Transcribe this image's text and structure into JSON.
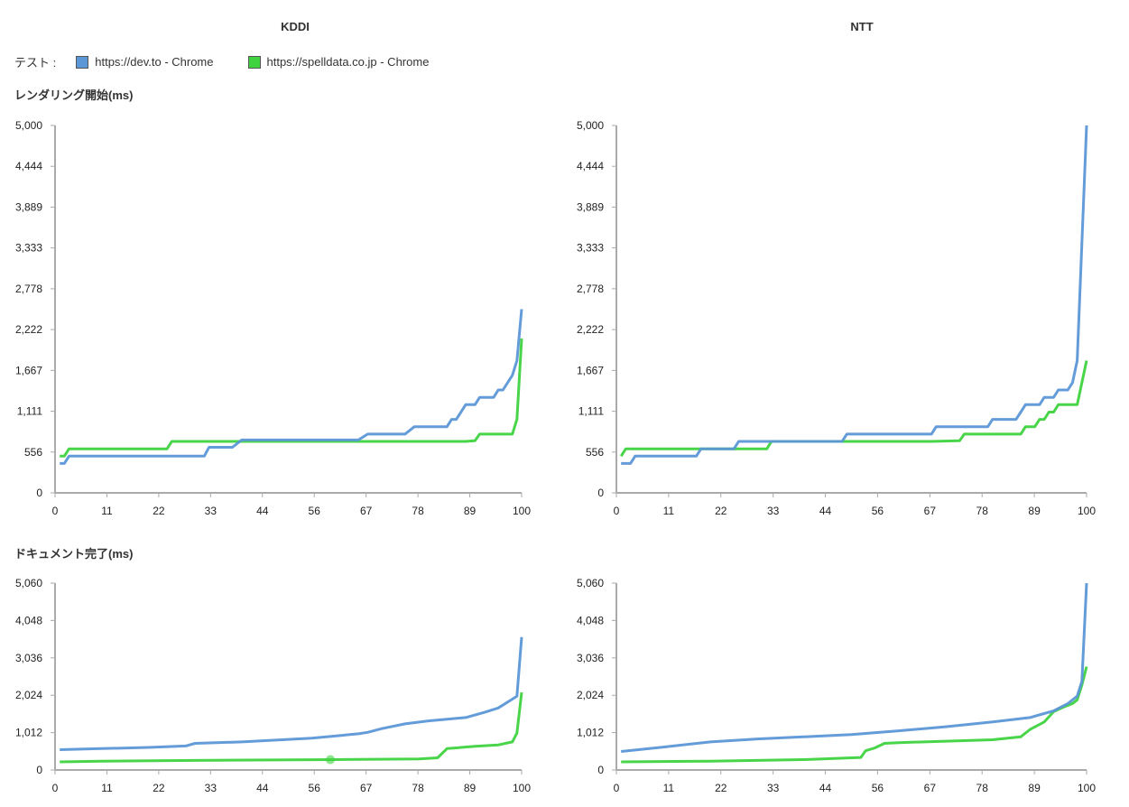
{
  "columns": [
    "KDDI",
    "NTT"
  ],
  "legend": {
    "label": "テスト :",
    "items": [
      {
        "name": "https://dev.to - Chrome",
        "color": "#5b97d6"
      },
      {
        "name": "https://spelldata.co.jp - Chrome",
        "color": "#3fd33f"
      }
    ]
  },
  "sections": [
    "レンダリング開始(ms)",
    "ドキュメント完了(ms)"
  ],
  "chart_data": [
    {
      "type": "line",
      "title": "KDDI - レンダリング開始(ms)",
      "xlim": [
        0,
        100
      ],
      "ylim": [
        0,
        5000
      ],
      "xticks": [
        "0",
        "11",
        "22",
        "33",
        "44",
        "56",
        "67",
        "78",
        "89",
        "100"
      ],
      "yticks": [
        "0",
        "556",
        "1,111",
        "1,667",
        "2,222",
        "2,778",
        "3,333",
        "3,889",
        "4,444",
        "5,000"
      ],
      "series": [
        {
          "name": "https://dev.to - Chrome",
          "points": [
            [
              1,
              400
            ],
            [
              2,
              400
            ],
            [
              3,
              500
            ],
            [
              32,
              500
            ],
            [
              33,
              620
            ],
            [
              38,
              620
            ],
            [
              40,
              720
            ],
            [
              65,
              720
            ],
            [
              67,
              800
            ],
            [
              75,
              800
            ],
            [
              77,
              900
            ],
            [
              84,
              900
            ],
            [
              85,
              1000
            ],
            [
              86,
              1000
            ],
            [
              88,
              1200
            ],
            [
              90,
              1200
            ],
            [
              91,
              1300
            ],
            [
              94,
              1300
            ],
            [
              95,
              1400
            ],
            [
              96,
              1400
            ],
            [
              98,
              1600
            ],
            [
              99,
              1800
            ],
            [
              100,
              2500
            ]
          ]
        },
        {
          "name": "https://spelldata.co.jp - Chrome",
          "points": [
            [
              1,
              500
            ],
            [
              2,
              500
            ],
            [
              3,
              600
            ],
            [
              24,
              600
            ],
            [
              25,
              700
            ],
            [
              88,
              700
            ],
            [
              90,
              710
            ],
            [
              91,
              800
            ],
            [
              98,
              800
            ],
            [
              99,
              1000
            ],
            [
              100,
              2100
            ]
          ]
        }
      ]
    },
    {
      "type": "line",
      "title": "NTT - レンダリング開始(ms)",
      "xlim": [
        0,
        100
      ],
      "ylim": [
        0,
        5000
      ],
      "xticks": [
        "0",
        "11",
        "22",
        "33",
        "44",
        "56",
        "67",
        "78",
        "89",
        "100"
      ],
      "yticks": [
        "0",
        "556",
        "1,111",
        "1,667",
        "2,222",
        "2,778",
        "3,333",
        "3,889",
        "4,444",
        "5,000"
      ],
      "series": [
        {
          "name": "https://dev.to - Chrome",
          "points": [
            [
              1,
              400
            ],
            [
              3,
              400
            ],
            [
              4,
              500
            ],
            [
              17,
              500
            ],
            [
              18,
              600
            ],
            [
              25,
              600
            ],
            [
              26,
              700
            ],
            [
              48,
              700
            ],
            [
              49,
              800
            ],
            [
              67,
              800
            ],
            [
              68,
              900
            ],
            [
              79,
              900
            ],
            [
              80,
              1000
            ],
            [
              85,
              1000
            ],
            [
              86,
              1100
            ],
            [
              87,
              1200
            ],
            [
              90,
              1200
            ],
            [
              91,
              1300
            ],
            [
              93,
              1300
            ],
            [
              94,
              1400
            ],
            [
              96,
              1400
            ],
            [
              97,
              1500
            ],
            [
              98,
              1800
            ],
            [
              100,
              5000
            ]
          ]
        },
        {
          "name": "https://spelldata.co.jp - Chrome",
          "points": [
            [
              1,
              500
            ],
            [
              2,
              600
            ],
            [
              32,
              600
            ],
            [
              33,
              700
            ],
            [
              67,
              700
            ],
            [
              73,
              710
            ],
            [
              74,
              800
            ],
            [
              86,
              800
            ],
            [
              87,
              900
            ],
            [
              89,
              900
            ],
            [
              90,
              1000
            ],
            [
              91,
              1000
            ],
            [
              92,
              1100
            ],
            [
              93,
              1100
            ],
            [
              94,
              1200
            ],
            [
              98,
              1200
            ],
            [
              100,
              1800
            ]
          ]
        }
      ]
    },
    {
      "type": "line",
      "title": "KDDI - ドキュメント完了(ms)",
      "xlim": [
        0,
        100
      ],
      "ylim": [
        0,
        5060
      ],
      "xticks": [
        "0",
        "11",
        "22",
        "33",
        "44",
        "56",
        "67",
        "78",
        "89",
        "100"
      ],
      "yticks": [
        "0",
        "1,012",
        "2,024",
        "3,036",
        "4,048",
        "5,060"
      ],
      "highlight": {
        "series": 1,
        "x": 59,
        "y": 280
      },
      "series": [
        {
          "name": "https://dev.to - Chrome",
          "points": [
            [
              1,
              550
            ],
            [
              10,
              580
            ],
            [
              20,
              610
            ],
            [
              28,
              650
            ],
            [
              30,
              720
            ],
            [
              40,
              760
            ],
            [
              55,
              860
            ],
            [
              65,
              980
            ],
            [
              67,
              1020
            ],
            [
              70,
              1120
            ],
            [
              75,
              1250
            ],
            [
              80,
              1330
            ],
            [
              88,
              1420
            ],
            [
              92,
              1560
            ],
            [
              95,
              1680
            ],
            [
              98,
              1920
            ],
            [
              99,
              2000
            ],
            [
              100,
              3600
            ]
          ]
        },
        {
          "name": "https://spelldata.co.jp - Chrome",
          "points": [
            [
              1,
              220
            ],
            [
              10,
              240
            ],
            [
              30,
              260
            ],
            [
              60,
              280
            ],
            [
              78,
              300
            ],
            [
              82,
              330
            ],
            [
              84,
              580
            ],
            [
              90,
              640
            ],
            [
              95,
              680
            ],
            [
              98,
              760
            ],
            [
              99,
              1000
            ],
            [
              100,
              2100
            ]
          ]
        }
      ]
    },
    {
      "type": "line",
      "title": "NTT - ドキュメント完了(ms)",
      "xlim": [
        0,
        100
      ],
      "ylim": [
        0,
        5060
      ],
      "xticks": [
        "0",
        "11",
        "22",
        "33",
        "44",
        "56",
        "67",
        "78",
        "89",
        "100"
      ],
      "yticks": [
        "0",
        "1,012",
        "2,024",
        "3,036",
        "4,048",
        "5,060"
      ],
      "series": [
        {
          "name": "https://dev.to - Chrome",
          "points": [
            [
              1,
              500
            ],
            [
              10,
              620
            ],
            [
              20,
              760
            ],
            [
              30,
              840
            ],
            [
              40,
              900
            ],
            [
              50,
              960
            ],
            [
              60,
              1060
            ],
            [
              70,
              1170
            ],
            [
              80,
              1300
            ],
            [
              88,
              1420
            ],
            [
              93,
              1600
            ],
            [
              96,
              1800
            ],
            [
              98,
              2000
            ],
            [
              99,
              2400
            ],
            [
              100,
              5060
            ]
          ]
        },
        {
          "name": "https://spelldata.co.jp - Chrome",
          "points": [
            [
              1,
              220
            ],
            [
              20,
              240
            ],
            [
              40,
              280
            ],
            [
              52,
              340
            ],
            [
              53,
              520
            ],
            [
              55,
              600
            ],
            [
              57,
              720
            ],
            [
              60,
              740
            ],
            [
              70,
              780
            ],
            [
              80,
              820
            ],
            [
              86,
              900
            ],
            [
              88,
              1100
            ],
            [
              91,
              1300
            ],
            [
              93,
              1580
            ],
            [
              95,
              1700
            ],
            [
              97,
              1800
            ],
            [
              98,
              1900
            ],
            [
              99,
              2300
            ],
            [
              100,
              2800
            ]
          ]
        }
      ]
    }
  ]
}
